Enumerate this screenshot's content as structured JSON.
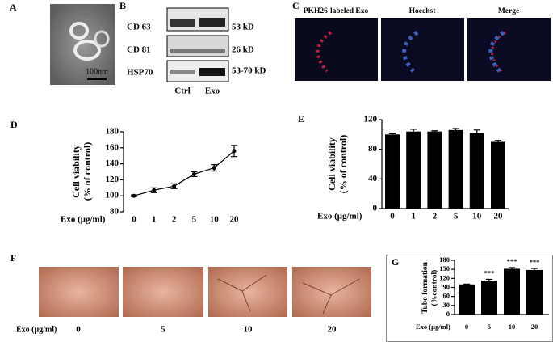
{
  "panels": {
    "A": {
      "label": "A",
      "scale_bar": "100nm"
    },
    "B": {
      "label": "B",
      "rows": [
        "CD 63",
        "CD 81",
        "HSP70"
      ],
      "sizes": [
        "53 kD",
        "26 kD",
        "53-70 kD"
      ],
      "lanes": [
        "Ctrl",
        "Exo"
      ]
    },
    "C": {
      "label": "C",
      "titles": [
        "PKH26-labeled Exo",
        "Hoechst",
        "Merge"
      ]
    },
    "F": {
      "label": "F",
      "xlabel": "Exo (μg/ml)",
      "categories": [
        "0",
        "5",
        "10",
        "20"
      ]
    }
  },
  "chart_data": [
    {
      "type": "line",
      "label": "D",
      "xlabel": "Exo (μg/ml)",
      "ylabel": [
        "Cell viability",
        "(% of control)"
      ],
      "categories": [
        "0",
        "1",
        "2",
        "5",
        "10",
        "20"
      ],
      "values": [
        100,
        107,
        112,
        127,
        135,
        156
      ],
      "errors": [
        1,
        3,
        3,
        3,
        4,
        7
      ],
      "color": "#000000",
      "ylim": [
        80,
        180
      ],
      "yticks": [
        80,
        100,
        120,
        140,
        160,
        180
      ]
    },
    {
      "type": "bar",
      "label": "E",
      "xlabel": "Exo (μg/ml)",
      "ylabel": [
        "Cell viability",
        "(% of control)"
      ],
      "categories": [
        "0",
        "1",
        "2",
        "5",
        "10",
        "20"
      ],
      "values": [
        100,
        104,
        104,
        106,
        102,
        90
      ],
      "errors": [
        1,
        3,
        1,
        2,
        4,
        2
      ],
      "color": "#000000",
      "ylim": [
        0,
        120
      ],
      "yticks": [
        0,
        40,
        80,
        120
      ]
    },
    {
      "type": "bar",
      "label": "G",
      "xlabel": "Exo (μg/ml)",
      "ylabel": [
        "Tubo formation",
        "(%control)"
      ],
      "categories": [
        "0",
        "5",
        "10",
        "20"
      ],
      "values": [
        100,
        113,
        152,
        148
      ],
      "errors": [
        1,
        4,
        4,
        5
      ],
      "significance": [
        null,
        "***",
        "***",
        "***"
      ],
      "color": "#000000",
      "ylim": [
        0,
        180
      ],
      "yticks": [
        0,
        30,
        60,
        90,
        120,
        150,
        180
      ]
    }
  ]
}
